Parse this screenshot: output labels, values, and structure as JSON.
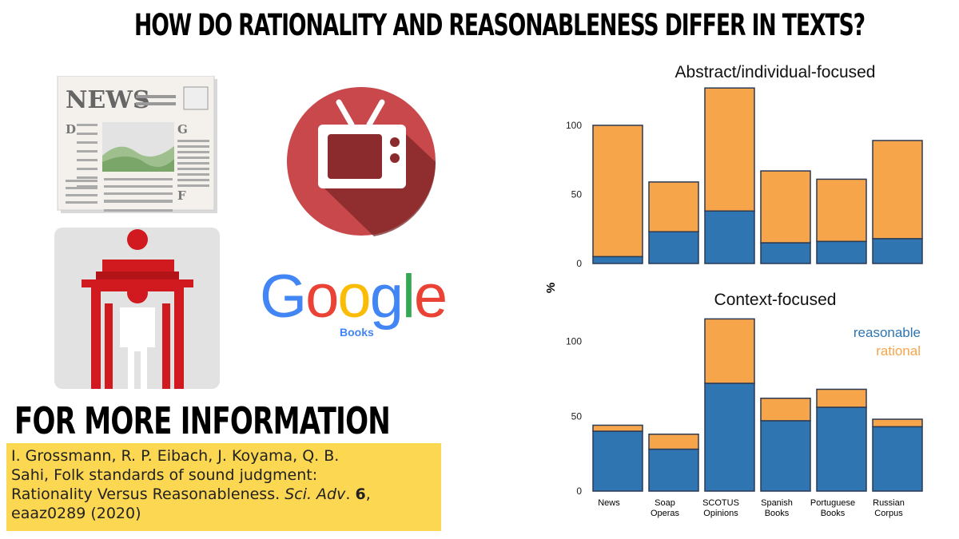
{
  "headline": "HOW DO RATIONALITY AND REASONABLENESS DIFFER IN TEXTS?",
  "icons": {
    "newspaper_text": "NEWS",
    "newspaper_letters": [
      "D",
      "G",
      "F"
    ],
    "google_logo": "Google",
    "google_sub": "Books"
  },
  "info": {
    "heading": "FOR MORE INFORMATION",
    "citation_line1": "I. Grossmann, R. P. Eibach, J. Koyama, Q. B.",
    "citation_line2": "Sahi, Folk standards of sound judgment:",
    "citation_line3a": "Rationality Versus Reasonableness. ",
    "citation_journal": "Sci. Adv",
    "citation_dot": ". ",
    "citation_volume": "6",
    "citation_comma": ",",
    "citation_line4": "eaaz0289 (2020)"
  },
  "colors": {
    "reasonable": "#2e75b2",
    "rational": "#f6a54b",
    "tv_circle": "#c9484b",
    "booth_red": "#d11a1f"
  },
  "chart_data": [
    {
      "type": "bar",
      "stacked": true,
      "title": "Abstract/individual-focused",
      "ylabel": "%",
      "ylim": [
        0,
        130
      ],
      "yticks": [
        0,
        50,
        100
      ],
      "categories": [
        "News",
        "Soap Operas",
        "SCOTUS Opinions",
        "Spanish Books",
        "Portuguese Books",
        "Russian Corpus"
      ],
      "series": [
        {
          "name": "reasonable",
          "values": [
            5,
            23,
            38,
            15,
            16,
            18
          ]
        },
        {
          "name": "rational",
          "values": [
            95,
            36,
            89,
            52,
            45,
            71
          ]
        }
      ]
    },
    {
      "type": "bar",
      "stacked": true,
      "title": "Context-focused",
      "ylabel": "%",
      "ylim": [
        0,
        120
      ],
      "yticks": [
        0,
        50,
        100
      ],
      "legend": "top-right",
      "categories": [
        "News",
        "Soap Operas",
        "SCOTUS Opinions",
        "Spanish Books",
        "Portuguese Books",
        "Russian Corpus"
      ],
      "series": [
        {
          "name": "reasonable",
          "values": [
            40,
            28,
            72,
            47,
            56,
            43
          ]
        },
        {
          "name": "rational",
          "values": [
            4,
            10,
            43,
            15,
            12,
            5
          ]
        }
      ]
    }
  ],
  "xlabels": [
    [
      "News"
    ],
    [
      "Soap",
      "Operas"
    ],
    [
      "SCOTUS",
      "Opinions"
    ],
    [
      "Spanish",
      "Books"
    ],
    [
      "Portuguese",
      "Books"
    ],
    [
      "Russian",
      "Corpus"
    ]
  ]
}
